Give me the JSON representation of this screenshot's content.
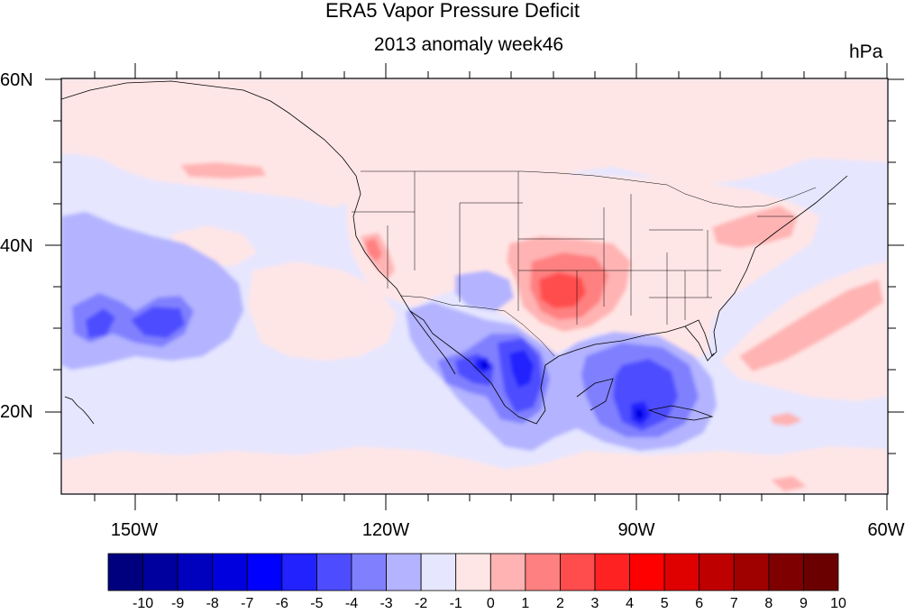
{
  "title": "ERA5 Vapor Pressure Deficit",
  "subtitle": "2013 anomaly week46",
  "units": "hPa",
  "map": {
    "lon_range": [
      -160,
      -60
    ],
    "lat_range": [
      10,
      60
    ],
    "lon_ticks": [
      "150W",
      "120W",
      "90W",
      "60W"
    ],
    "lat_ticks": [
      "60N",
      "40N",
      "20N"
    ]
  },
  "colorbar": {
    "labels": [
      "-10",
      "-9",
      "-8",
      "-7",
      "-6",
      "-5",
      "-4",
      "-3",
      "-2",
      "-1",
      "0",
      "1",
      "2",
      "3",
      "4",
      "5",
      "6",
      "7",
      "8",
      "9",
      "10"
    ],
    "colors": [
      "#00007f",
      "#00009f",
      "#0000bf",
      "#0000df",
      "#0000ff",
      "#2222ff",
      "#4d4dff",
      "#8080ff",
      "#b3b3ff",
      "#e6e6ff",
      "#ffe6e6",
      "#ffb3b3",
      "#ff8080",
      "#ff4d4d",
      "#ff2222",
      "#ff0000",
      "#df0000",
      "#bf0000",
      "#9f0000",
      "#7f0000",
      "#6b0000"
    ]
  }
}
